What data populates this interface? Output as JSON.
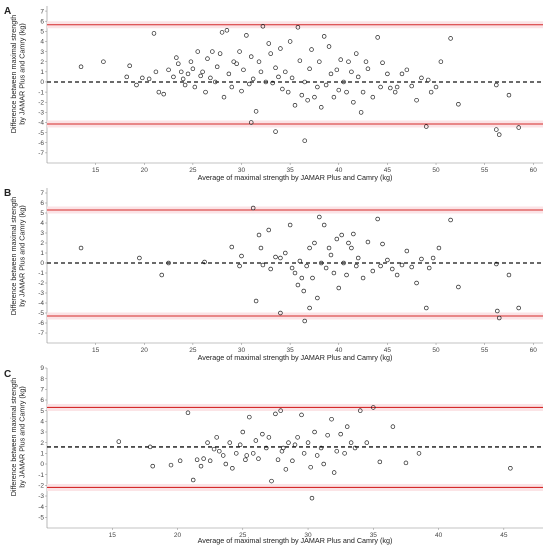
{
  "chart_data": [
    {
      "type": "scatter",
      "panel": "A",
      "xlabel": "Average of maximal strength by JAMAR Plus and Camry (kg)",
      "ylabel": [
        "Difference between maximal strength",
        "by JAMAR Plus and Camry (kg)"
      ],
      "xlim": [
        10,
        61
      ],
      "ylim": [
        -8,
        7.5
      ],
      "xticks": [
        15,
        20,
        25,
        30,
        35,
        40,
        45,
        50,
        55,
        60
      ],
      "yticks": [
        -7,
        -6,
        -5,
        -4,
        -3,
        -2,
        -1,
        0,
        1,
        2,
        3,
        4,
        5,
        6,
        7
      ],
      "mean_diff": 0.0,
      "upper_loa": 5.65,
      "lower_loa": -4.15,
      "points": [
        [
          13.5,
          1.5
        ],
        [
          15.8,
          2.0
        ],
        [
          18.2,
          0.5
        ],
        [
          18.5,
          1.6
        ],
        [
          19.2,
          -0.3
        ],
        [
          19.8,
          0.4
        ],
        [
          20.5,
          0.3
        ],
        [
          21.0,
          4.8
        ],
        [
          21.2,
          1.0
        ],
        [
          21.5,
          -1.0
        ],
        [
          22.0,
          -1.2
        ],
        [
          22.5,
          1.2
        ],
        [
          23.0,
          0.5
        ],
        [
          23.3,
          2.4
        ],
        [
          23.5,
          1.8
        ],
        [
          23.8,
          1.0
        ],
        [
          24.0,
          0.3
        ],
        [
          24.2,
          -0.3
        ],
        [
          24.5,
          0.8
        ],
        [
          24.8,
          2.0
        ],
        [
          25.0,
          1.3
        ],
        [
          25.2,
          -0.5
        ],
        [
          25.5,
          3.0
        ],
        [
          25.8,
          0.6
        ],
        [
          26.0,
          1.0
        ],
        [
          26.3,
          -1.0
        ],
        [
          26.5,
          2.3
        ],
        [
          26.8,
          0.4
        ],
        [
          27.0,
          3.0
        ],
        [
          27.3,
          0.0
        ],
        [
          27.5,
          1.5
        ],
        [
          27.8,
          2.8
        ],
        [
          28.0,
          4.9
        ],
        [
          28.2,
          -1.5
        ],
        [
          28.5,
          5.1
        ],
        [
          28.7,
          0.8
        ],
        [
          29.0,
          -0.5
        ],
        [
          29.2,
          2.0
        ],
        [
          29.5,
          1.8
        ],
        [
          29.8,
          3.0
        ],
        [
          30.0,
          -0.9
        ],
        [
          30.2,
          1.2
        ],
        [
          30.5,
          4.6
        ],
        [
          30.8,
          -0.2
        ],
        [
          31.0,
          2.5
        ],
        [
          31.2,
          0.3
        ],
        [
          31.5,
          -2.9
        ],
        [
          31.8,
          2.0
        ],
        [
          32.0,
          1.0
        ],
        [
          32.2,
          5.5
        ],
        [
          32.5,
          0.0
        ],
        [
          32.8,
          3.8
        ],
        [
          33.0,
          2.8
        ],
        [
          33.2,
          -0.1
        ],
        [
          33.5,
          1.4
        ],
        [
          33.8,
          0.5
        ],
        [
          34.0,
          3.3
        ],
        [
          34.2,
          -0.7
        ],
        [
          34.5,
          1.0
        ],
        [
          34.8,
          -1.0
        ],
        [
          35.0,
          4.0
        ],
        [
          35.2,
          0.4
        ],
        [
          35.5,
          -2.3
        ],
        [
          35.8,
          5.4
        ],
        [
          36.0,
          2.1
        ],
        [
          36.2,
          -1.3
        ],
        [
          36.5,
          0.0
        ],
        [
          36.8,
          -1.8
        ],
        [
          37.0,
          1.3
        ],
        [
          37.2,
          3.2
        ],
        [
          37.5,
          -1.5
        ],
        [
          37.8,
          -0.5
        ],
        [
          38.0,
          2.0
        ],
        [
          38.2,
          -2.5
        ],
        [
          38.5,
          4.5
        ],
        [
          38.7,
          -0.3
        ],
        [
          39.0,
          3.5
        ],
        [
          39.2,
          0.8
        ],
        [
          39.5,
          -1.5
        ],
        [
          39.8,
          1.2
        ],
        [
          40.0,
          -0.8
        ],
        [
          40.2,
          2.2
        ],
        [
          40.5,
          0.0
        ],
        [
          40.8,
          -1.0
        ],
        [
          41.0,
          2.0
        ],
        [
          41.3,
          1.0
        ],
        [
          41.5,
          -2.0
        ],
        [
          41.8,
          2.8
        ],
        [
          42.0,
          0.5
        ],
        [
          42.3,
          -3.0
        ],
        [
          42.5,
          -1.0
        ],
        [
          42.8,
          2.0
        ],
        [
          43.0,
          1.3
        ],
        [
          43.5,
          -1.5
        ],
        [
          44.0,
          4.4
        ],
        [
          44.3,
          -0.5
        ],
        [
          44.5,
          1.9
        ],
        [
          45.0,
          0.8
        ],
        [
          45.3,
          -0.6
        ],
        [
          45.8,
          -1.0
        ],
        [
          46.0,
          -0.5
        ],
        [
          46.5,
          0.8
        ],
        [
          47.0,
          1.2
        ],
        [
          47.5,
          -0.4
        ],
        [
          48.0,
          -1.8
        ],
        [
          48.5,
          0.4
        ],
        [
          49.0,
          -4.4
        ],
        [
          49.2,
          0.2
        ],
        [
          49.5,
          -1.0
        ],
        [
          50.0,
          -0.5
        ],
        [
          50.5,
          2.0
        ],
        [
          51.5,
          4.3
        ],
        [
          52.3,
          -2.2
        ],
        [
          56.2,
          -0.3
        ],
        [
          56.2,
          -4.7
        ],
        [
          56.5,
          -5.2
        ],
        [
          57.5,
          -1.3
        ],
        [
          58.5,
          -4.5
        ],
        [
          36.5,
          -5.8
        ],
        [
          31.0,
          -4.0
        ],
        [
          33.5,
          -4.9
        ]
      ]
    },
    {
      "type": "scatter",
      "panel": "B",
      "xlabel": "Average of maximal strength by JAMAR Plus and Camry (kg)",
      "ylabel": [
        "Difference between maximal strength",
        "by JAMAR Plus and Camry (kg)"
      ],
      "xlim": [
        10,
        61
      ],
      "ylim": [
        -8,
        7.5
      ],
      "xticks": [
        15,
        20,
        25,
        30,
        35,
        40,
        45,
        50,
        55,
        60
      ],
      "yticks": [
        -7,
        -6,
        -5,
        -4,
        -3,
        -2,
        -1,
        0,
        1,
        2,
        3,
        4,
        5,
        6,
        7
      ],
      "mean_diff": 0.0,
      "upper_loa": 5.3,
      "lower_loa": -5.3,
      "points": [
        [
          13.5,
          1.5
        ],
        [
          19.5,
          0.5
        ],
        [
          21.8,
          -1.2
        ],
        [
          22.5,
          0.0
        ],
        [
          26.2,
          0.1
        ],
        [
          29.0,
          1.6
        ],
        [
          29.8,
          -0.3
        ],
        [
          30.0,
          0.7
        ],
        [
          31.2,
          5.5
        ],
        [
          31.5,
          -3.8
        ],
        [
          31.8,
          2.8
        ],
        [
          32.0,
          1.5
        ],
        [
          32.2,
          -0.2
        ],
        [
          32.8,
          3.3
        ],
        [
          33.0,
          -0.6
        ],
        [
          33.5,
          0.6
        ],
        [
          34.0,
          -5.0
        ],
        [
          34.5,
          1.0
        ],
        [
          35.0,
          3.8
        ],
        [
          35.2,
          -0.5
        ],
        [
          35.5,
          -1.0
        ],
        [
          35.8,
          -2.2
        ],
        [
          36.0,
          0.2
        ],
        [
          36.2,
          -1.5
        ],
        [
          36.4,
          -2.8
        ],
        [
          36.5,
          -5.8
        ],
        [
          36.7,
          -0.3
        ],
        [
          37.0,
          1.5
        ],
        [
          37.3,
          -1.5
        ],
        [
          37.5,
          2.0
        ],
        [
          37.8,
          -3.5
        ],
        [
          38.0,
          4.6
        ],
        [
          38.2,
          0.0
        ],
        [
          38.5,
          3.8
        ],
        [
          38.7,
          -0.5
        ],
        [
          39.0,
          1.5
        ],
        [
          39.2,
          0.8
        ],
        [
          39.5,
          -1.0
        ],
        [
          39.8,
          2.4
        ],
        [
          40.0,
          -2.5
        ],
        [
          40.3,
          2.8
        ],
        [
          40.5,
          0.0
        ],
        [
          40.8,
          -1.2
        ],
        [
          41.0,
          2.0
        ],
        [
          41.3,
          1.5
        ],
        [
          41.5,
          2.9
        ],
        [
          41.8,
          -0.3
        ],
        [
          42.0,
          0.5
        ],
        [
          42.5,
          -1.5
        ],
        [
          43.0,
          2.1
        ],
        [
          43.5,
          -0.8
        ],
        [
          44.0,
          4.4
        ],
        [
          44.3,
          -0.3
        ],
        [
          44.5,
          1.9
        ],
        [
          45.0,
          0.3
        ],
        [
          45.5,
          -0.6
        ],
        [
          46.0,
          -1.2
        ],
        [
          46.5,
          -0.2
        ],
        [
          47.0,
          1.2
        ],
        [
          47.5,
          -0.4
        ],
        [
          48.0,
          -2.0
        ],
        [
          48.5,
          0.4
        ],
        [
          49.0,
          -4.5
        ],
        [
          49.3,
          -0.5
        ],
        [
          49.7,
          0.5
        ],
        [
          50.3,
          1.5
        ],
        [
          51.5,
          4.3
        ],
        [
          52.3,
          -2.4
        ],
        [
          56.2,
          -0.1
        ],
        [
          56.3,
          -4.8
        ],
        [
          56.5,
          -5.5
        ],
        [
          57.5,
          -1.2
        ],
        [
          58.5,
          -4.5
        ],
        [
          37.0,
          -4.5
        ],
        [
          34.0,
          0.5
        ]
      ]
    },
    {
      "type": "scatter",
      "panel": "C",
      "xlabel": "Average of maximal strength by JAMAR Plus and Camry (kg)",
      "ylabel": [
        "Difference between maximal strength",
        "by JAMAR Plus and Camry (kg)"
      ],
      "xlim": [
        10,
        48
      ],
      "ylim": [
        -6,
        9
      ],
      "xticks": [
        15,
        20,
        25,
        30,
        35,
        40,
        45
      ],
      "yticks": [
        -5,
        -4,
        -3,
        -2,
        -1,
        0,
        1,
        2,
        3,
        4,
        5,
        6,
        7,
        8,
        9
      ],
      "mean_diff": 1.6,
      "upper_loa": 5.3,
      "lower_loa": -2.2,
      "points": [
        [
          15.5,
          2.1
        ],
        [
          17.9,
          1.6
        ],
        [
          18.1,
          -0.2
        ],
        [
          19.5,
          -0.1
        ],
        [
          20.2,
          0.3
        ],
        [
          20.8,
          4.8
        ],
        [
          21.2,
          -1.5
        ],
        [
          21.5,
          0.4
        ],
        [
          22.0,
          0.5
        ],
        [
          22.3,
          2.0
        ],
        [
          22.5,
          0.3
        ],
        [
          22.8,
          1.4
        ],
        [
          23.0,
          2.5
        ],
        [
          23.2,
          1.2
        ],
        [
          23.5,
          0.8
        ],
        [
          23.7,
          0.0
        ],
        [
          24.0,
          2.0
        ],
        [
          24.2,
          -0.4
        ],
        [
          24.5,
          1.0
        ],
        [
          24.8,
          1.8
        ],
        [
          25.0,
          3.0
        ],
        [
          25.2,
          0.4
        ],
        [
          25.5,
          4.4
        ],
        [
          25.8,
          1.0
        ],
        [
          26.0,
          2.2
        ],
        [
          26.2,
          0.5
        ],
        [
          26.5,
          2.8
        ],
        [
          26.8,
          1.5
        ],
        [
          27.0,
          2.5
        ],
        [
          27.2,
          -1.6
        ],
        [
          27.5,
          4.7
        ],
        [
          27.7,
          0.4
        ],
        [
          27.9,
          5.0
        ],
        [
          28.1,
          1.5
        ],
        [
          28.3,
          -0.5
        ],
        [
          28.5,
          2.0
        ],
        [
          28.8,
          0.3
        ],
        [
          29.0,
          1.8
        ],
        [
          29.2,
          2.5
        ],
        [
          29.5,
          4.6
        ],
        [
          29.7,
          1.0
        ],
        [
          30.0,
          2.0
        ],
        [
          30.2,
          -0.3
        ],
        [
          30.5,
          3.0
        ],
        [
          30.7,
          0.8
        ],
        [
          31.0,
          1.5
        ],
        [
          31.2,
          0.0
        ],
        [
          31.5,
          2.7
        ],
        [
          31.8,
          4.2
        ],
        [
          32.0,
          -0.8
        ],
        [
          32.2,
          1.2
        ],
        [
          32.5,
          2.8
        ],
        [
          32.8,
          1.0
        ],
        [
          33.0,
          3.5
        ],
        [
          33.3,
          2.0
        ],
        [
          33.6,
          1.5
        ],
        [
          34.0,
          5.0
        ],
        [
          34.5,
          2.0
        ],
        [
          35.0,
          5.3
        ],
        [
          35.5,
          0.2
        ],
        [
          36.5,
          3.5
        ],
        [
          37.5,
          0.1
        ],
        [
          38.5,
          1.0
        ],
        [
          45.5,
          -0.4
        ],
        [
          30.3,
          -3.2
        ],
        [
          28.0,
          1.2
        ],
        [
          21.8,
          -0.2
        ],
        [
          25.3,
          0.8
        ]
      ]
    }
  ]
}
